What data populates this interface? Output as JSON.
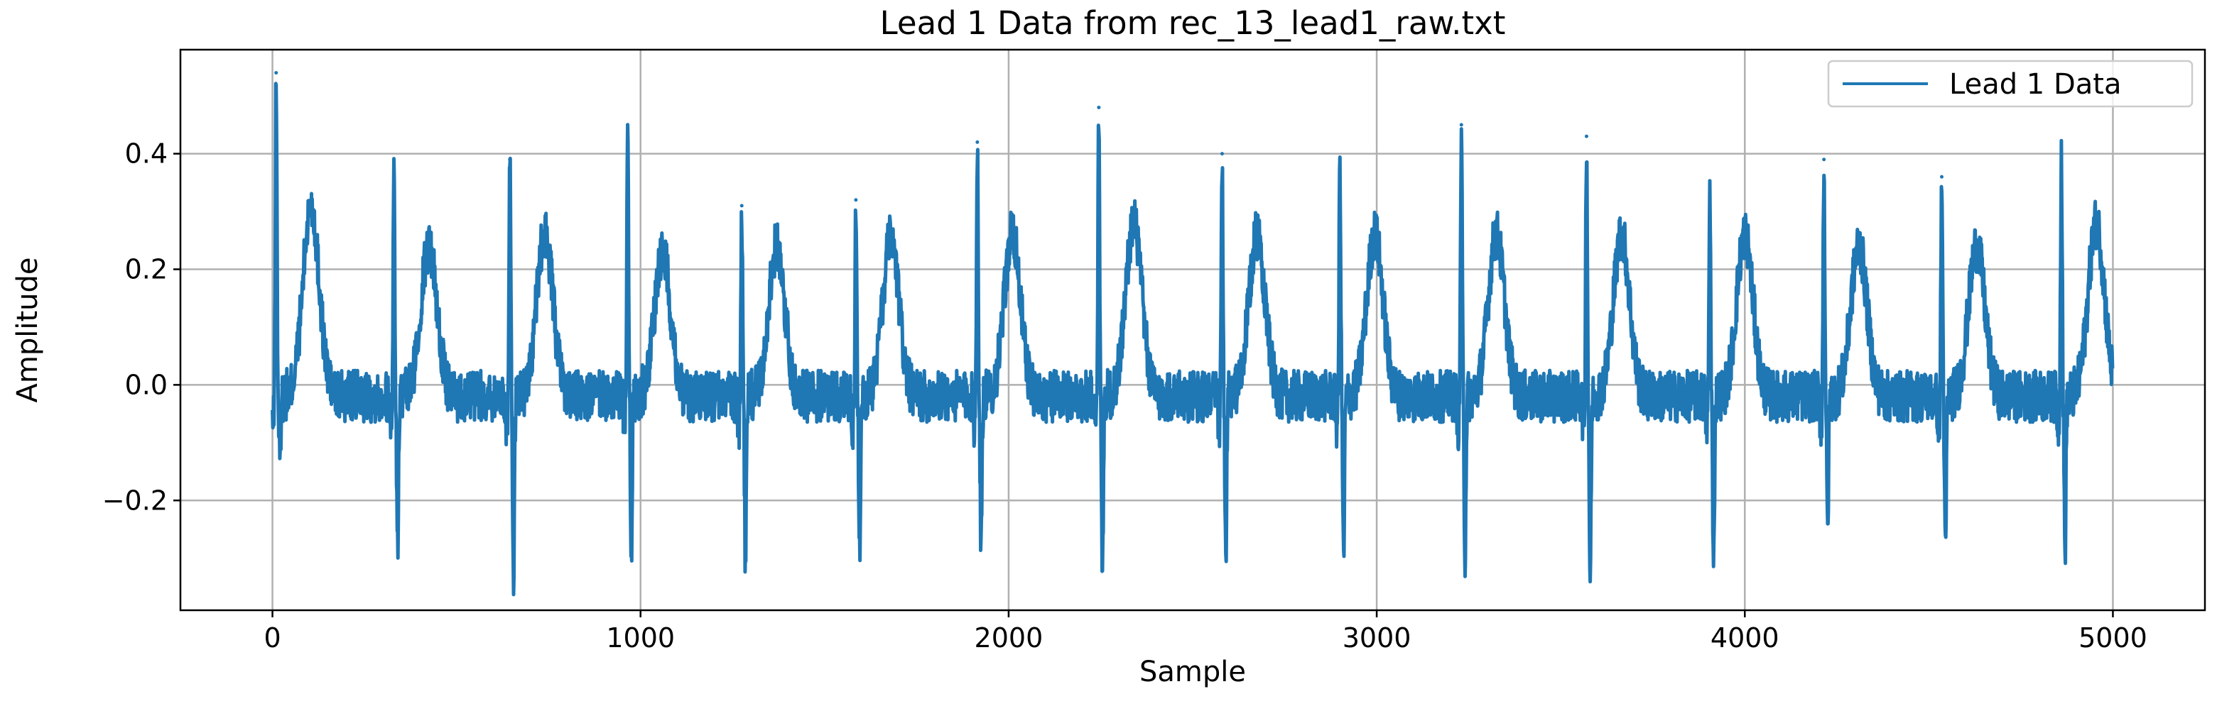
{
  "chart_data": {
    "type": "line",
    "title": "Lead 1 Data from rec_13_lead1_raw.txt",
    "xlabel": "Sample",
    "ylabel": "Amplitude",
    "xlim": [
      -250,
      5250
    ],
    "ylim": [
      -0.39,
      0.58
    ],
    "x_ticks": [
      0,
      1000,
      2000,
      3000,
      4000,
      5000
    ],
    "x_tick_labels": [
      "0",
      "1000",
      "2000",
      "3000",
      "4000",
      "5000"
    ],
    "y_ticks": [
      -0.2,
      0.0,
      0.2,
      0.4
    ],
    "y_tick_labels": [
      "−0.2",
      "0.0",
      "0.2",
      "0.4"
    ],
    "grid": true,
    "legend_position": "top-right",
    "series": [
      {
        "name": "Lead 1 Data",
        "color": "#1f77b4",
        "sample_count": 5000,
        "baseline": -0.02,
        "noise_amplitude": 0.045,
        "beats": [
          {
            "r_sample": 10,
            "r_peak": 0.54,
            "s_trough": -0.13,
            "t_peak": 0.31
          },
          {
            "r_sample": 330,
            "r_peak": 0.37,
            "s_trough": -0.29,
            "t_peak": 0.24
          },
          {
            "r_sample": 645,
            "r_peak": 0.39,
            "s_trough": -0.33,
            "t_peak": 0.26
          },
          {
            "r_sample": 965,
            "r_peak": 0.45,
            "s_trough": -0.29,
            "t_peak": 0.23
          },
          {
            "r_sample": 1275,
            "r_peak": 0.31,
            "s_trough": -0.31,
            "t_peak": 0.24
          },
          {
            "r_sample": 1585,
            "r_peak": 0.32,
            "s_trough": -0.29,
            "t_peak": 0.25
          },
          {
            "r_sample": 1915,
            "r_peak": 0.42,
            "s_trough": -0.27,
            "t_peak": 0.26
          },
          {
            "r_sample": 2245,
            "r_peak": 0.48,
            "s_trough": -0.31,
            "t_peak": 0.28
          },
          {
            "r_sample": 2580,
            "r_peak": 0.4,
            "s_trough": -0.31,
            "t_peak": 0.26
          },
          {
            "r_sample": 2900,
            "r_peak": 0.39,
            "s_trough": -0.3,
            "t_peak": 0.26
          },
          {
            "r_sample": 3230,
            "r_peak": 0.45,
            "s_trough": -0.29,
            "t_peak": 0.26
          },
          {
            "r_sample": 3570,
            "r_peak": 0.43,
            "s_trough": -0.34,
            "t_peak": 0.26
          },
          {
            "r_sample": 3905,
            "r_peak": 0.33,
            "s_trough": -0.33,
            "t_peak": 0.26
          },
          {
            "r_sample": 4215,
            "r_peak": 0.39,
            "s_trough": -0.25,
            "t_peak": 0.24
          },
          {
            "r_sample": 4535,
            "r_peak": 0.36,
            "s_trough": -0.3,
            "t_peak": 0.24
          },
          {
            "r_sample": 4860,
            "r_peak": 0.41,
            "s_trough": -0.29,
            "t_peak": 0.28
          }
        ]
      }
    ]
  }
}
